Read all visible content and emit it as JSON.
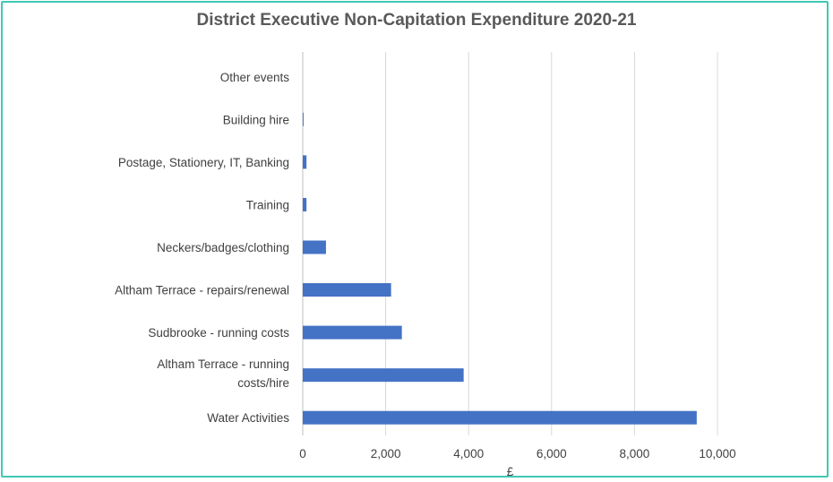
{
  "chart_data": {
    "type": "bar",
    "orientation": "horizontal",
    "title": "District Executive Non-Capitation Expenditure 2020-21",
    "xlabel": "£",
    "ylabel": "",
    "categories": [
      "Other events",
      "Building hire",
      "Postage, Stationery, IT, Banking",
      "Training",
      "Neckers/badges/clothing",
      "Altham Terrace - repairs/renewal",
      "Sudbrooke - running costs",
      "Altham Terrace - running costs/hire",
      "Water Activities"
    ],
    "category_lines": [
      [
        "Other events"
      ],
      [
        "Building hire"
      ],
      [
        "Postage, Stationery, IT, Banking"
      ],
      [
        "Training"
      ],
      [
        "Neckers/badges/clothing"
      ],
      [
        "Altham Terrace - repairs/renewal"
      ],
      [
        "Sudbrooke - running costs"
      ],
      [
        "Altham Terrace - running",
        "costs/hire"
      ],
      [
        "Water Activities"
      ]
    ],
    "values": [
      0,
      20,
      90,
      90,
      560,
      2130,
      2390,
      3880,
      9500
    ],
    "xlim": [
      0,
      10000
    ],
    "xticks": [
      0,
      2000,
      4000,
      6000,
      8000,
      10000
    ],
    "xtick_labels": [
      "0",
      "2,000",
      "4,000",
      "6,000",
      "8,000",
      "10,000"
    ],
    "grid": true,
    "legend": "none",
    "bar_color": "#4472c4",
    "grid_color": "#d9d9d9",
    "frame_color": "#40c8b4"
  }
}
